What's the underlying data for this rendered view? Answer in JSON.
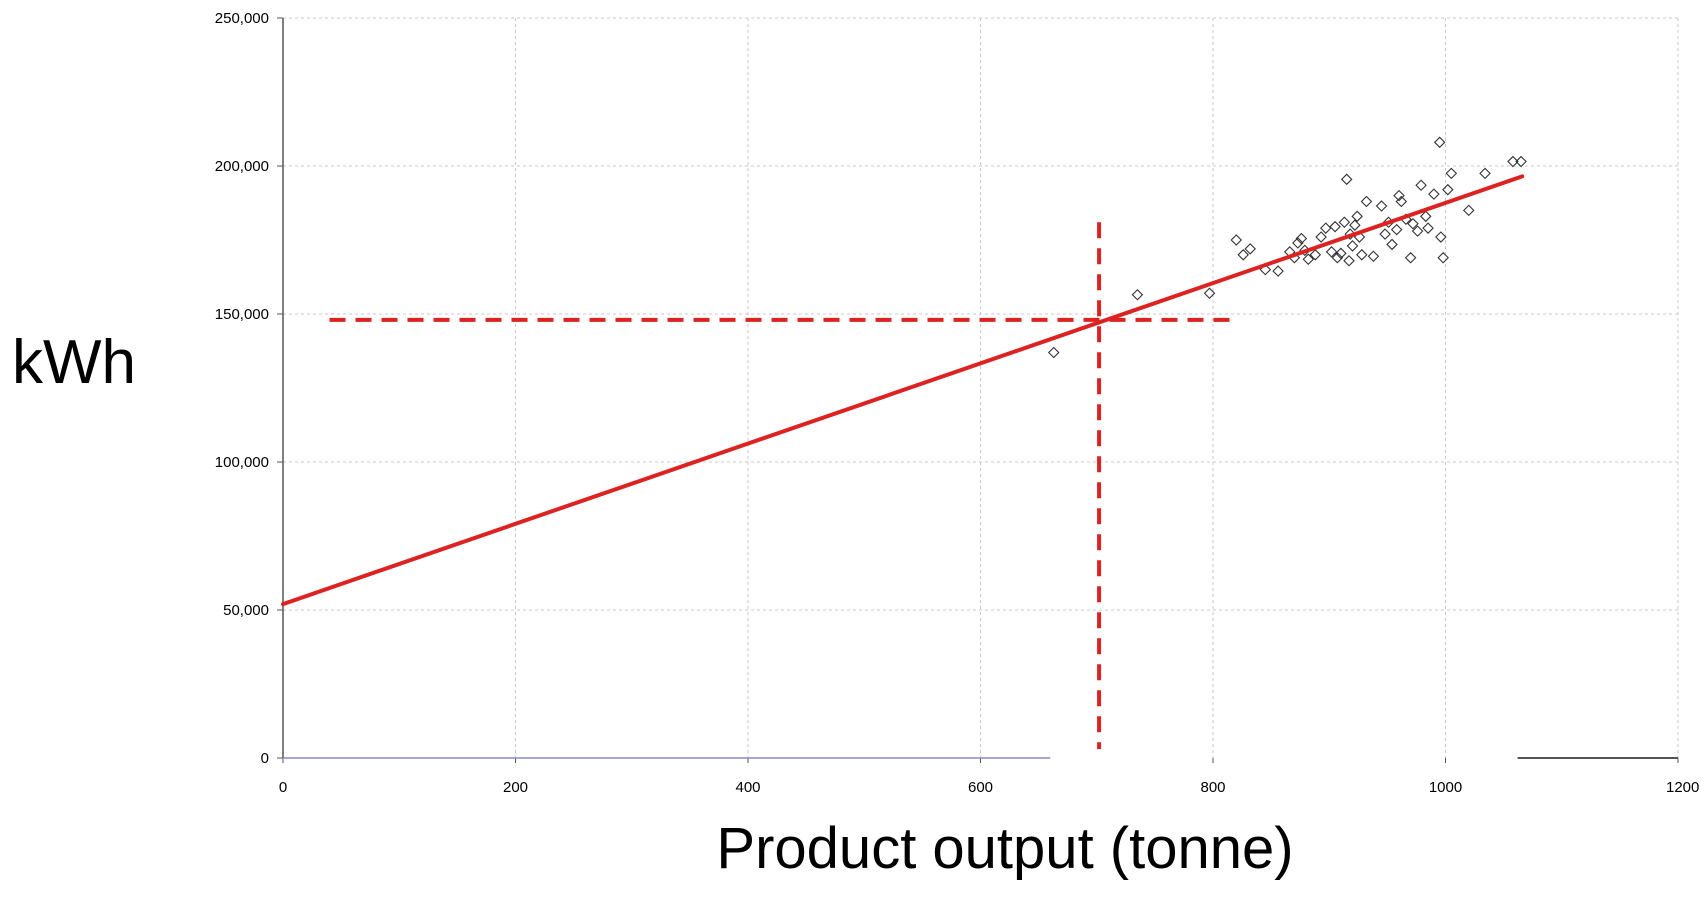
{
  "chart_data": {
    "type": "scatter",
    "xlabel": "Product output (tonne)",
    "ylabel": "kWh",
    "xlim": [
      0,
      1200
    ],
    "ylim": [
      0,
      250000
    ],
    "grid": true,
    "x_ticks": [
      "0",
      "200",
      "400",
      "600",
      "800",
      "1000",
      "1200"
    ],
    "y_ticks": [
      "0",
      "50,000",
      "100,000",
      "150,000",
      "200,000",
      "250,000"
    ],
    "colors": {
      "fit_line": "#dd2222",
      "points": "#333333",
      "grid": "#c8c8c8",
      "axis": "#555555",
      "x_axis_lower": "#8888cc"
    },
    "series": [
      {
        "points": [
          [
            663,
            137000
          ],
          [
            735,
            156500
          ],
          [
            797,
            157000
          ],
          [
            820,
            175000
          ],
          [
            826,
            170000
          ],
          [
            832,
            172000
          ],
          [
            845,
            165000
          ],
          [
            856,
            164500
          ],
          [
            866,
            171000
          ],
          [
            870,
            169000
          ],
          [
            873,
            174000
          ],
          [
            876,
            175500
          ],
          [
            879,
            171500
          ],
          [
            882,
            168500
          ],
          [
            888,
            170000
          ],
          [
            893,
            176000
          ],
          [
            897,
            179000
          ],
          [
            902,
            171000
          ],
          [
            905,
            179500
          ],
          [
            907,
            169000
          ],
          [
            910,
            170500
          ],
          [
            913,
            181000
          ],
          [
            915,
            195500
          ],
          [
            917,
            168000
          ],
          [
            918,
            177000
          ],
          [
            920,
            173000
          ],
          [
            922,
            180000
          ],
          [
            924,
            183000
          ],
          [
            926,
            176000
          ],
          [
            928,
            170000
          ],
          [
            932,
            188000
          ],
          [
            938,
            169500
          ],
          [
            945,
            186500
          ],
          [
            948,
            177000
          ],
          [
            951,
            181000
          ],
          [
            954,
            173500
          ],
          [
            958,
            178500
          ],
          [
            960,
            190000
          ],
          [
            962,
            188000
          ],
          [
            966,
            182000
          ],
          [
            970,
            169000
          ],
          [
            972,
            180500
          ],
          [
            976,
            178000
          ],
          [
            979,
            193500
          ],
          [
            983,
            183000
          ],
          [
            985,
            179000
          ],
          [
            990,
            190500
          ],
          [
            995,
            208000
          ],
          [
            996,
            176000
          ],
          [
            998,
            169000
          ],
          [
            1002,
            192000
          ],
          [
            1005,
            197500
          ],
          [
            1020,
            185000
          ],
          [
            1034,
            197500
          ],
          [
            1058,
            201500
          ],
          [
            1065,
            201500
          ]
        ]
      },
      {
        "type": "line",
        "points": [
          [
            0,
            52000
          ],
          [
            1066,
            196500
          ]
        ]
      }
    ],
    "reference_lines": [
      {
        "orientation": "horizontal",
        "y": 148000,
        "x_from": 40,
        "x_to": 820,
        "style": "dashed"
      },
      {
        "orientation": "vertical",
        "x": 702,
        "y_from": 3000,
        "y_to": 181000,
        "style": "dashed"
      }
    ]
  }
}
